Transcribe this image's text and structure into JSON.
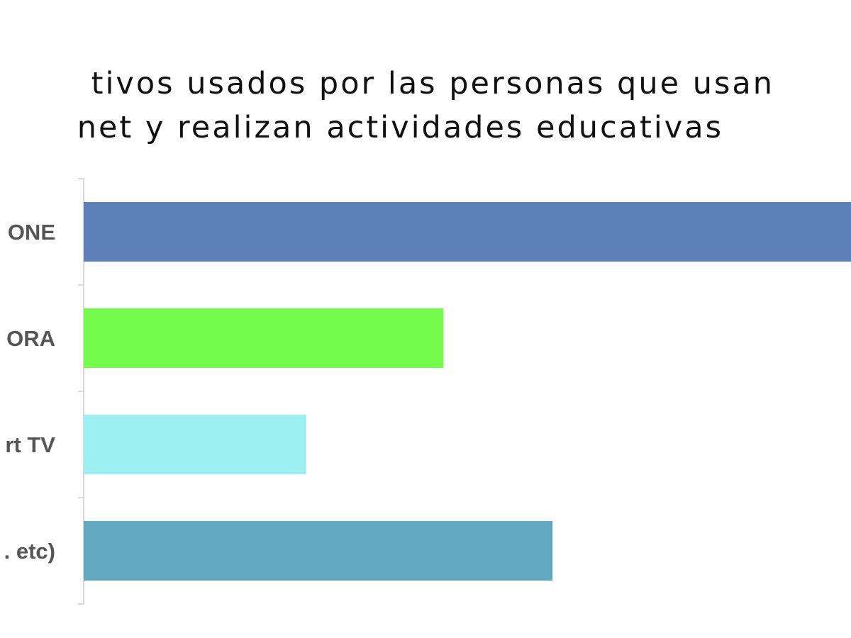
{
  "chart_data": {
    "type": "bar",
    "orientation": "horizontal",
    "title_lines": [
      "tivos usados por las personas que usan",
      "net y realizan actividades educativas"
    ],
    "categories": [
      "ONE",
      "ORA",
      "rt TV",
      ". etc)"
    ],
    "values": [
      100,
      46.9,
      29.0,
      61.1
    ],
    "colors": [
      "#5b7fb6",
      "#74fb4c",
      "#9cf0f1",
      "#63a8c1"
    ],
    "xlim": [
      0,
      100
    ],
    "grid": false,
    "legend": "none"
  }
}
